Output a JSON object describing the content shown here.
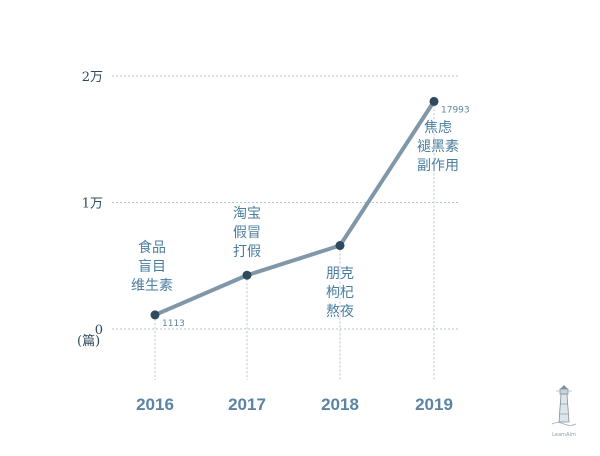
{
  "chart_data": {
    "type": "line",
    "categories": [
      "2016",
      "2017",
      "2018",
      "2019"
    ],
    "values": [
      1113,
      4250,
      6600,
      17993
    ],
    "data_labels": [
      "1113",
      "",
      "",
      "17993"
    ],
    "y_ticks": [
      {
        "value": 0,
        "label": "0"
      },
      {
        "value": 10000,
        "label": "1万"
      },
      {
        "value": 20000,
        "label": "2万"
      }
    ],
    "y_unit": "(篇)",
    "ylim": [
      0,
      20000
    ],
    "grid": true,
    "annotations": [
      {
        "lines": [
          "食品",
          "盲目",
          "维生素"
        ]
      },
      {
        "lines": [
          "淘宝",
          "假冒",
          "打假"
        ]
      },
      {
        "lines": [
          "朋克",
          "枸杞",
          "熬夜"
        ]
      },
      {
        "lines": [
          "焦虑",
          "褪黑素",
          "副作用"
        ]
      }
    ],
    "colors": {
      "line": "#7f97a8",
      "point": "#2f4a5c",
      "grid": "#b8c4cc",
      "x_tick": "#5a84a3",
      "annotation": "#4a7ea0"
    }
  },
  "watermark": {
    "text": "LearnAim",
    "icon": "lighthouse-icon"
  }
}
